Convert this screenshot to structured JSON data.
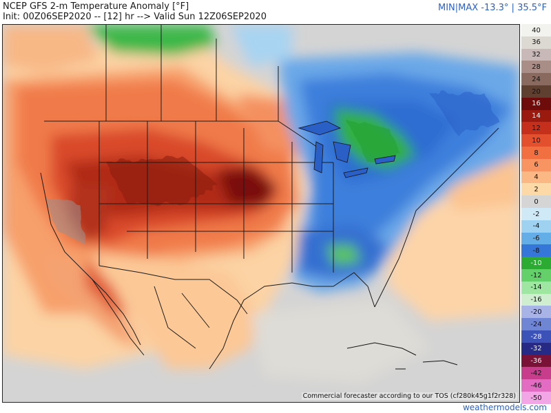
{
  "header": {
    "title": "NCEP GFS 2-m Temperature Anomaly [°F]",
    "subtitle": "Init: 00Z06SEP2020 -- [12] hr --> Valid Sun 12Z06SEP2020",
    "minmax": "MIN|MAX -13.3° | 35.5°F"
  },
  "footer": {
    "tos": "Commercial forecaster according to our TOS (cf280k45g1f2r328)",
    "credit": "weathermodels.com"
  },
  "colorbar": {
    "labels": [
      "40",
      "36",
      "32",
      "28",
      "24",
      "20",
      "16",
      "14",
      "12",
      "10",
      "8",
      "6",
      "4",
      "2",
      "0",
      "-2",
      "-4",
      "-6",
      "-8",
      "-10",
      "-12",
      "-14",
      "-16",
      "-20",
      "-24",
      "-28",
      "-32",
      "-36",
      "-42",
      "-46",
      "-50"
    ],
    "colors": [
      "#f2f2ee",
      "#dcd8d2",
      "#c8b8b8",
      "#a88e86",
      "#8a6a5e",
      "#5e3f30",
      "#6e0c0c",
      "#9a1a10",
      "#c4301c",
      "#e2502e",
      "#f26f42",
      "#f79462",
      "#fbb884",
      "#fdd9a8",
      "#d5d5d5",
      "#cfe9f7",
      "#9fd2f0",
      "#64aee8",
      "#3577d8",
      "#2cab32",
      "#63d069",
      "#9ee6a2",
      "#cfeecf",
      "#a8b4e6",
      "#6f86d4",
      "#3d52b6",
      "#262a84",
      "#7a1238",
      "#c83c8c",
      "#e26cc2",
      "#f3a6e6"
    ]
  }
}
